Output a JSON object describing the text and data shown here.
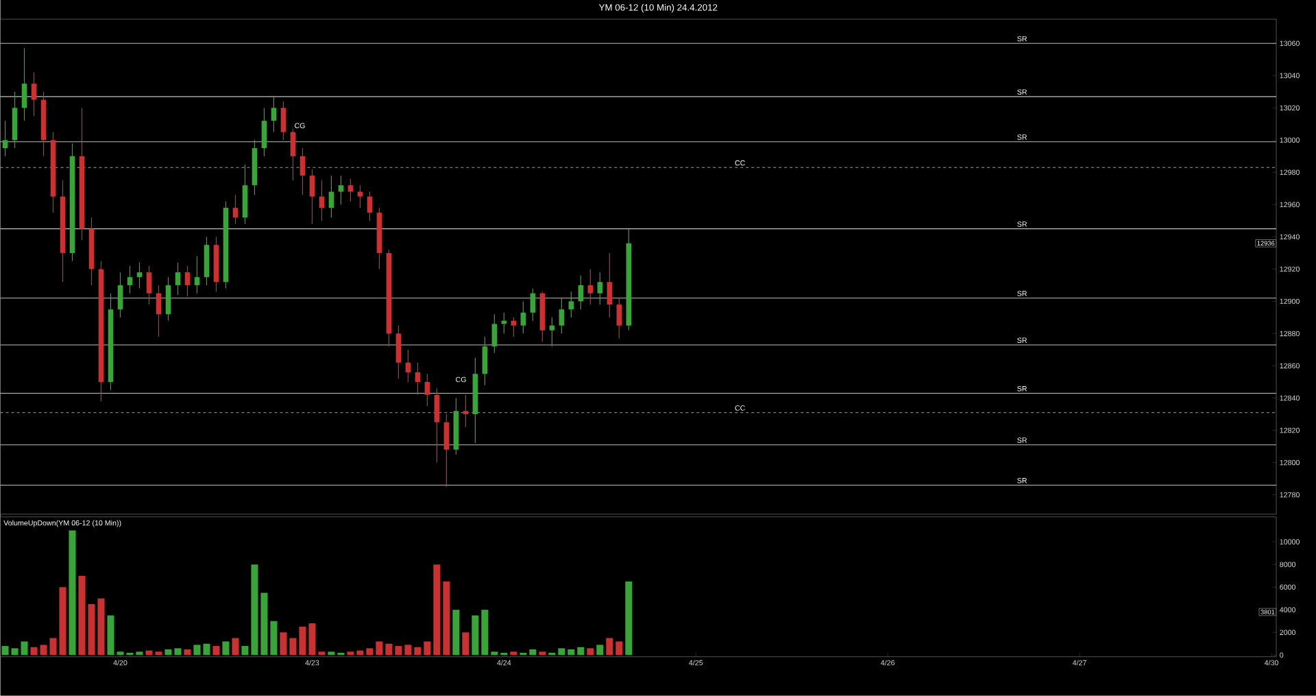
{
  "chart_data": [
    {
      "type": "candlestick",
      "title": "YM 06-12 (10 Min)  24.4.2012",
      "categories": [
        null,
        null,
        null,
        null,
        null,
        null,
        null,
        null,
        null,
        null,
        null,
        null,
        null,
        null,
        null,
        null,
        null,
        null,
        null,
        null,
        null,
        null,
        null,
        null,
        null,
        null,
        null,
        null,
        null,
        null,
        null,
        null,
        null,
        null,
        null,
        null,
        null,
        null,
        null,
        null,
        null,
        null,
        null,
        null,
        null,
        null,
        null,
        null,
        null,
        null,
        null,
        null,
        null,
        null,
        null,
        null,
        null,
        null,
        null,
        null,
        null,
        null,
        null,
        null,
        null,
        null,
        null,
        null,
        null,
        null,
        null,
        null,
        null,
        null,
        null,
        null,
        null,
        null,
        null,
        null,
        null,
        null,
        null,
        null,
        null,
        null,
        null,
        null,
        null,
        null,
        null,
        null,
        null,
        null,
        null,
        null,
        null,
        null,
        null,
        null,
        null,
        null,
        null,
        null,
        null,
        null,
        null,
        null,
        null,
        null,
        null,
        null,
        null,
        null,
        null,
        null,
        null,
        null,
        null,
        null,
        null,
        null,
        null,
        null,
        null,
        null,
        null,
        null,
        null,
        null,
        null,
        null,
        null
      ],
      "ohlc": [
        [
          12995,
          13012,
          12990,
          13000
        ],
        [
          13000,
          13030,
          12995,
          13020
        ],
        [
          13020,
          13057,
          13012,
          13035
        ],
        [
          13035,
          13042,
          13015,
          13025
        ],
        [
          13025,
          13030,
          12990,
          13000
        ],
        [
          13000,
          13005,
          12955,
          12965
        ],
        [
          12965,
          12975,
          12912,
          12930
        ],
        [
          12930,
          12998,
          12925,
          12990
        ],
        [
          12990,
          13020,
          12938,
          12945
        ],
        [
          12945,
          12952,
          12910,
          12920
        ],
        [
          12920,
          12925,
          12838,
          12850
        ],
        [
          12850,
          12905,
          12845,
          12895
        ],
        [
          12895,
          12918,
          12890,
          12910
        ],
        [
          12910,
          12922,
          12905,
          12915
        ],
        [
          12915,
          12924,
          12908,
          12918
        ],
        [
          12918,
          12922,
          12898,
          12905
        ],
        [
          12905,
          12910,
          12878,
          12892
        ],
        [
          12892,
          12915,
          12888,
          12910
        ],
        [
          12910,
          12924,
          12904,
          12918
        ],
        [
          12918,
          12922,
          12903,
          12910
        ],
        [
          12910,
          12928,
          12905,
          12915
        ],
        [
          12915,
          12940,
          12910,
          12935
        ],
        [
          12935,
          12940,
          12906,
          12912
        ],
        [
          12912,
          12962,
          12908,
          12958
        ],
        [
          12958,
          12966,
          12948,
          12952
        ],
        [
          12952,
          12985,
          12948,
          12972
        ],
        [
          12972,
          13000,
          12966,
          12995
        ],
        [
          12995,
          13020,
          12990,
          13012
        ],
        [
          13012,
          13027,
          13005,
          13020
        ],
        [
          13020,
          13024,
          13000,
          13005
        ],
        [
          13005,
          13008,
          12975,
          12990
        ],
        [
          12990,
          12995,
          12966,
          12978
        ],
        [
          12978,
          12982,
          12948,
          12965
        ],
        [
          12965,
          12975,
          12950,
          12958
        ],
        [
          12958,
          12978,
          12952,
          12968
        ],
        [
          12968,
          12978,
          12960,
          12972
        ],
        [
          12972,
          12976,
          12962,
          12968
        ],
        [
          12968,
          12972,
          12958,
          12965
        ],
        [
          12965,
          12968,
          12950,
          12955
        ],
        [
          12955,
          12958,
          12920,
          12930
        ],
        [
          12930,
          12932,
          12872,
          12880
        ],
        [
          12880,
          12885,
          12852,
          12862
        ],
        [
          12862,
          12870,
          12850,
          12856
        ],
        [
          12856,
          12862,
          12842,
          12850
        ],
        [
          12850,
          12855,
          12835,
          12842
        ],
        [
          12842,
          12846,
          12800,
          12825
        ],
        [
          12825,
          12830,
          12785,
          12808
        ],
        [
          12808,
          12840,
          12805,
          12832
        ],
        [
          12832,
          12842,
          12822,
          12830
        ],
        [
          12830,
          12865,
          12812,
          12855
        ],
        [
          12855,
          12878,
          12848,
          12872
        ],
        [
          12872,
          12892,
          12868,
          12886
        ],
        [
          12886,
          12893,
          12880,
          12888
        ],
        [
          12888,
          12890,
          12878,
          12885
        ],
        [
          12885,
          12900,
          12880,
          12893
        ],
        [
          12893,
          12908,
          12888,
          12905
        ],
        [
          12905,
          12906,
          12875,
          12882
        ],
        [
          12882,
          12890,
          12872,
          12885
        ],
        [
          12885,
          12902,
          12880,
          12895
        ],
        [
          12895,
          12906,
          12890,
          12900
        ],
        [
          12900,
          12916,
          12895,
          12910
        ],
        [
          12910,
          12920,
          12898,
          12905
        ],
        [
          12905,
          12918,
          12898,
          12912
        ],
        [
          12912,
          12930,
          12890,
          12898
        ],
        [
          12898,
          12902,
          12877,
          12885
        ],
        [
          12885,
          12945,
          12882,
          12936
        ],
        null,
        null,
        null,
        null,
        null,
        null,
        null,
        null,
        null,
        null,
        null,
        null,
        null,
        null,
        null,
        null,
        null,
        null,
        null,
        null,
        null,
        null,
        null,
        null,
        null,
        null,
        null,
        null,
        null,
        null,
        null,
        null,
        null,
        null,
        null,
        null,
        null,
        null,
        null,
        null,
        null,
        null,
        null,
        null,
        null,
        null,
        null,
        null,
        null,
        null,
        null,
        null,
        null,
        null,
        null,
        null,
        null,
        null,
        null,
        null,
        null,
        null,
        null,
        null,
        null,
        null,
        null
      ],
      "colors": [
        "#3aa33a",
        "#3aa33a",
        "#3aa33a",
        "#c83232",
        "#c83232",
        "#c83232",
        "#c83232",
        "#3aa33a",
        "#c83232",
        "#c83232",
        "#c83232",
        "#3aa33a",
        "#3aa33a",
        "#3aa33a",
        "#3aa33a",
        "#c83232",
        "#c83232",
        "#3aa33a",
        "#3aa33a",
        "#c83232",
        "#3aa33a",
        "#3aa33a",
        "#c83232",
        "#3aa33a",
        "#c83232",
        "#3aa33a",
        "#3aa33a",
        "#3aa33a",
        "#3aa33a",
        "#c83232",
        "#c83232",
        "#c83232",
        "#c83232",
        "#c83232",
        "#3aa33a",
        "#3aa33a",
        "#c83232",
        "#c83232",
        "#c83232",
        "#c83232",
        "#c83232",
        "#c83232",
        "#c83232",
        "#c83232",
        "#c83232",
        "#c83232",
        "#c83232",
        "#3aa33a",
        "#c83232",
        "#3aa33a",
        "#3aa33a",
        "#3aa33a",
        "#3aa33a",
        "#c83232",
        "#3aa33a",
        "#3aa33a",
        "#c83232",
        "#3aa33a",
        "#3aa33a",
        "#3aa33a",
        "#3aa33a",
        "#c83232",
        "#3aa33a",
        "#c83232",
        "#c83232",
        "#3aa33a",
        null,
        null,
        null,
        null,
        null,
        null,
        null,
        null,
        null,
        null,
        null,
        null,
        null,
        null,
        null,
        null,
        null,
        null,
        null,
        null,
        null,
        null,
        null,
        null,
        null,
        null,
        null,
        null,
        null,
        null,
        null,
        null,
        null,
        null,
        null,
        null,
        null,
        null,
        null,
        null,
        null,
        null,
        null,
        null,
        null,
        null,
        null,
        null,
        null,
        null,
        null,
        null,
        null,
        null,
        null,
        null,
        null,
        null,
        null,
        null,
        null,
        null,
        null,
        null,
        null,
        null,
        null
      ],
      "ylim": [
        12768,
        13075
      ],
      "yticks": [
        12780,
        12800,
        12820,
        12840,
        12860,
        12880,
        12900,
        12920,
        12940,
        12960,
        12980,
        13000,
        13020,
        13040,
        13060
      ],
      "ref_lines": [
        {
          "axis": "y",
          "value": 13060,
          "label": "SR",
          "color": "#c0c0c0"
        },
        {
          "axis": "y",
          "value": 13027,
          "label": "SR",
          "color": "#c0c0c0"
        },
        {
          "axis": "y",
          "value": 12999,
          "label": "SR",
          "color": "#c0c0c0"
        },
        {
          "axis": "y",
          "value": 12945,
          "label": "SR",
          "color": "#c0c0c0"
        },
        {
          "axis": "y",
          "value": 12902,
          "label": "SR",
          "color": "#c0c0c0"
        },
        {
          "axis": "y",
          "value": 12873,
          "label": "SR",
          "color": "#c0c0c0"
        },
        {
          "axis": "y",
          "value": 12843,
          "label": "SR",
          "color": "#c0c0c0"
        },
        {
          "axis": "y",
          "value": 12811,
          "label": "SR",
          "color": "#c0c0c0"
        },
        {
          "axis": "y",
          "value": 12786,
          "label": "SR",
          "color": "#c0c0c0"
        },
        {
          "axis": "y",
          "value": 12983,
          "label": "CC",
          "color": "#a0a0a0",
          "line_style": "dashed"
        },
        {
          "axis": "y",
          "value": 12831,
          "label": "CC",
          "color": "#a0a0a0",
          "line_style": "dashed"
        }
      ],
      "annotations": [
        "CG",
        "CG",
        {
          "text": "12936",
          "y": 12936
        }
      ]
    },
    {
      "type": "bar",
      "title": "VolumeUpDown(YM 06-12 (10 Min))",
      "categories": [
        null,
        null,
        null,
        null,
        null,
        null,
        null,
        null,
        null,
        null,
        null,
        null,
        "4/20",
        null,
        null,
        null,
        null,
        null,
        null,
        null,
        null,
        null,
        null,
        null,
        null,
        null,
        null,
        null,
        null,
        null,
        null,
        null,
        "4/23",
        null,
        null,
        null,
        null,
        null,
        null,
        null,
        null,
        null,
        null,
        null,
        null,
        null,
        null,
        null,
        null,
        null,
        null,
        null,
        "4/24",
        null,
        null,
        null,
        null,
        null,
        null,
        null,
        null,
        null,
        null,
        null,
        null,
        null,
        null,
        null,
        null,
        null,
        null,
        null,
        "4/25",
        null,
        null,
        null,
        null,
        null,
        null,
        null,
        null,
        null,
        null,
        null,
        null,
        null,
        null,
        null,
        null,
        null,
        null,
        null,
        "4/26",
        null,
        null,
        null,
        null,
        null,
        null,
        null,
        null,
        null,
        null,
        null,
        null,
        null,
        null,
        null,
        null,
        null,
        null,
        null,
        "4/27",
        null,
        null,
        null,
        null,
        null,
        null,
        null,
        null,
        null,
        null,
        null,
        null,
        null,
        null,
        null,
        null,
        null,
        null,
        null,
        "4/30"
      ],
      "values": [
        800,
        600,
        1200,
        700,
        900,
        1500,
        6000,
        11000,
        7000,
        4500,
        5000,
        3500,
        300,
        200,
        300,
        400,
        300,
        500,
        600,
        500,
        900,
        1000,
        800,
        1200,
        1500,
        800,
        8000,
        5500,
        3000,
        2000,
        1500,
        2500,
        2800,
        300,
        300,
        200,
        300,
        400,
        600,
        1200,
        1000,
        800,
        900,
        700,
        1200,
        8000,
        6500,
        4000,
        2000,
        3500,
        4000,
        300,
        200,
        300,
        200,
        500,
        300,
        200,
        600,
        500,
        700,
        600,
        900,
        1500,
        1200,
        6500,
        null,
        null,
        null,
        null,
        null,
        null,
        null,
        null,
        null,
        null,
        null,
        null,
        null,
        null,
        null,
        null,
        null,
        null,
        null,
        null,
        null,
        null,
        null,
        null,
        null,
        null,
        null,
        null,
        null,
        null,
        null,
        null,
        null,
        null,
        null,
        null,
        null,
        null,
        null,
        null,
        null,
        null,
        null,
        null,
        null,
        null,
        null,
        null,
        null,
        null,
        null,
        null,
        null,
        null,
        null,
        null,
        null,
        null,
        null,
        null,
        null,
        null,
        null,
        null,
        null,
        null,
        null
      ],
      "colors": [
        "#3aa33a",
        "#3aa33a",
        "#3aa33a",
        "#c83232",
        "#c83232",
        "#c83232",
        "#c83232",
        "#3aa33a",
        "#c83232",
        "#c83232",
        "#c83232",
        "#3aa33a",
        "#3aa33a",
        "#3aa33a",
        "#3aa33a",
        "#c83232",
        "#c83232",
        "#3aa33a",
        "#3aa33a",
        "#c83232",
        "#3aa33a",
        "#3aa33a",
        "#c83232",
        "#3aa33a",
        "#c83232",
        "#3aa33a",
        "#3aa33a",
        "#3aa33a",
        "#3aa33a",
        "#c83232",
        "#c83232",
        "#c83232",
        "#c83232",
        "#c83232",
        "#3aa33a",
        "#3aa33a",
        "#c83232",
        "#c83232",
        "#c83232",
        "#c83232",
        "#c83232",
        "#c83232",
        "#c83232",
        "#c83232",
        "#c83232",
        "#c83232",
        "#c83232",
        "#3aa33a",
        "#c83232",
        "#3aa33a",
        "#3aa33a",
        "#3aa33a",
        "#3aa33a",
        "#c83232",
        "#3aa33a",
        "#3aa33a",
        "#c83232",
        "#3aa33a",
        "#3aa33a",
        "#3aa33a",
        "#3aa33a",
        "#c83232",
        "#3aa33a",
        "#c83232",
        "#c83232",
        "#3aa33a",
        null,
        null,
        null,
        null,
        null,
        null,
        null,
        null,
        null,
        null,
        null,
        null,
        null,
        null,
        null,
        null,
        null,
        null,
        null,
        null,
        null,
        null,
        null,
        null,
        null,
        null,
        null,
        null,
        null,
        null,
        null,
        null,
        null,
        null,
        null,
        null,
        null,
        null,
        null,
        null,
        null,
        null,
        null,
        null,
        null,
        null,
        null,
        null,
        null,
        null,
        null,
        null,
        null,
        null,
        null,
        null,
        null,
        null,
        null,
        null,
        null,
        null,
        null,
        null,
        null,
        null,
        null
      ],
      "ylim": [
        -150,
        12200
      ],
      "yticks": [
        0,
        2000,
        4000,
        6000,
        8000,
        10000
      ],
      "annotations": [
        {
          "text": "3801",
          "y": 3801
        }
      ]
    }
  ]
}
